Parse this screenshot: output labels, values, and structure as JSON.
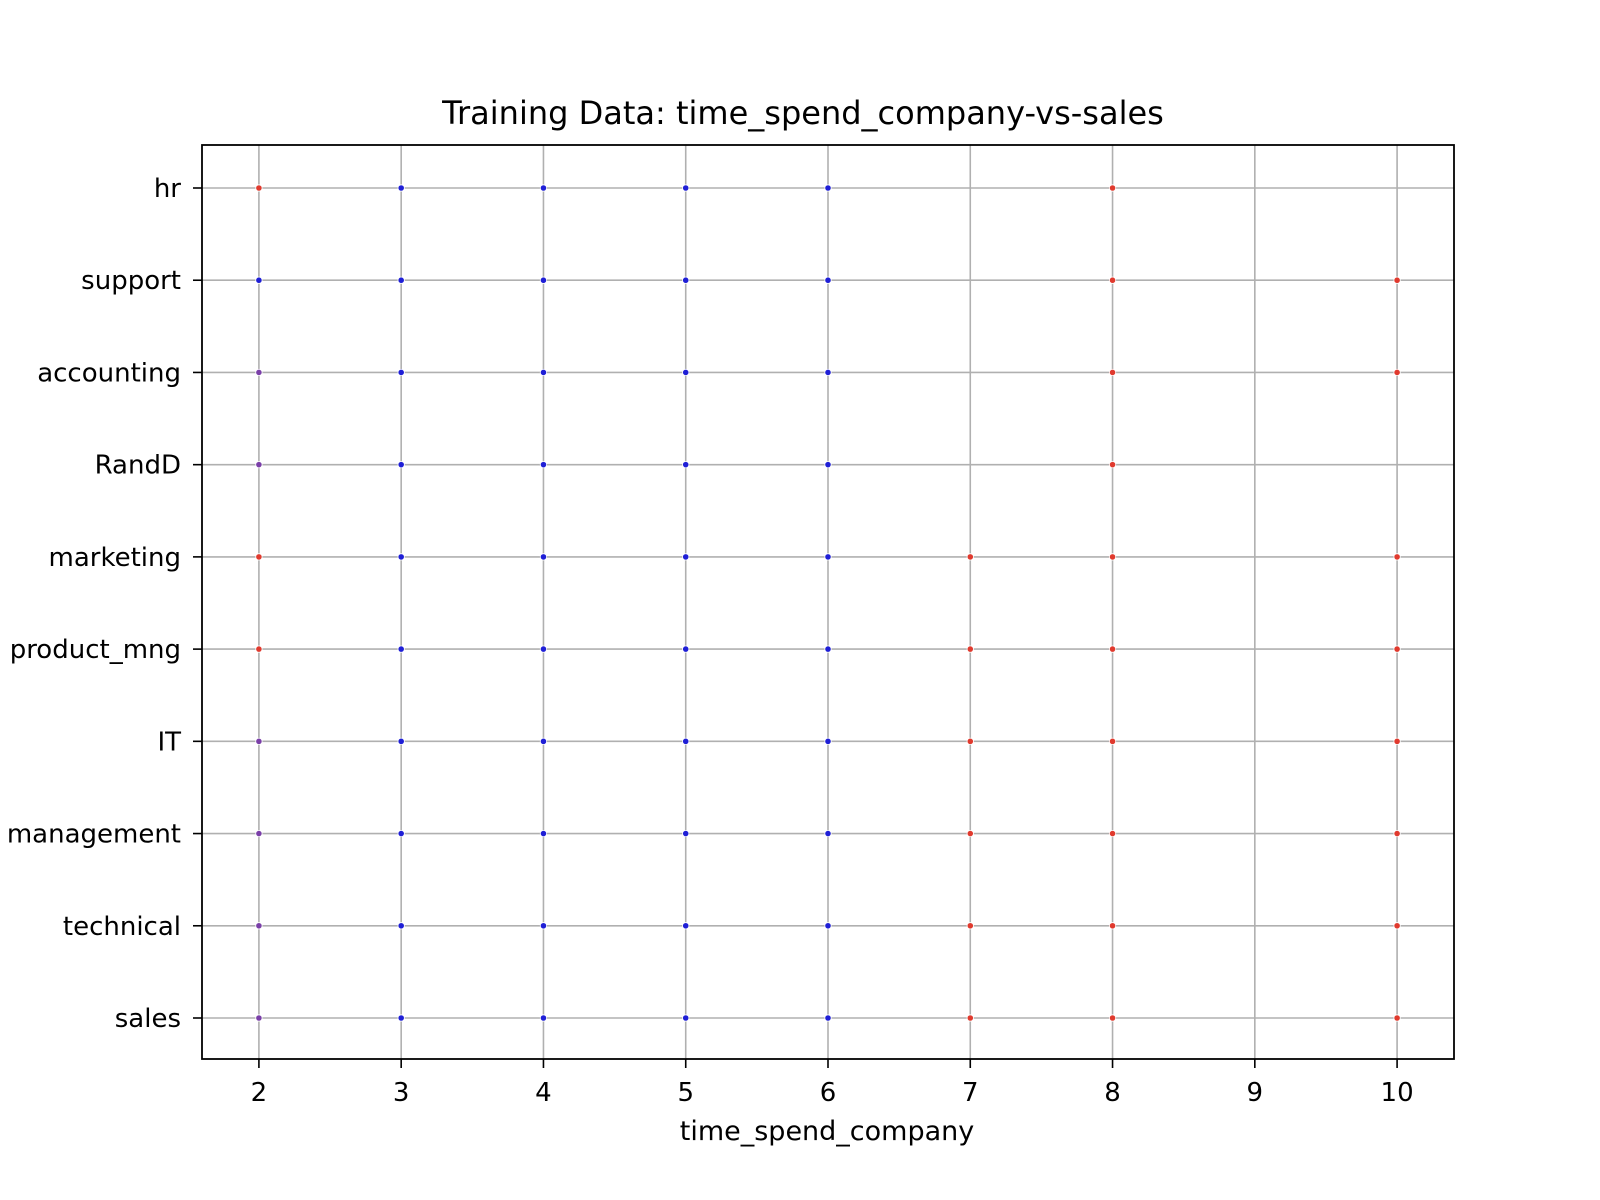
{
  "chart_data": {
    "type": "scatter",
    "title": "Training Data: time_spend_company-vs-sales",
    "xlabel": "time_spend_company",
    "ylabel": "",
    "xlim": [
      1.6,
      10.4
    ],
    "x_ticks": [
      2,
      3,
      4,
      5,
      6,
      7,
      8,
      9,
      10
    ],
    "y_categories": [
      "sales",
      "technical",
      "management",
      "IT",
      "product_mng",
      "marketing",
      "RandD",
      "accounting",
      "support",
      "hr"
    ],
    "grid": true,
    "colors": {
      "blue": "#1f1fd6",
      "red": "#e03a2e",
      "purple": "#7a3fa8"
    },
    "points": [
      {
        "x": 2,
        "y": "hr",
        "color": "red"
      },
      {
        "x": 3,
        "y": "hr",
        "color": "blue"
      },
      {
        "x": 4,
        "y": "hr",
        "color": "blue"
      },
      {
        "x": 5,
        "y": "hr",
        "color": "blue"
      },
      {
        "x": 6,
        "y": "hr",
        "color": "blue"
      },
      {
        "x": 8,
        "y": "hr",
        "color": "red"
      },
      {
        "x": 2,
        "y": "support",
        "color": "blue"
      },
      {
        "x": 3,
        "y": "support",
        "color": "blue"
      },
      {
        "x": 4,
        "y": "support",
        "color": "blue"
      },
      {
        "x": 5,
        "y": "support",
        "color": "blue"
      },
      {
        "x": 6,
        "y": "support",
        "color": "blue"
      },
      {
        "x": 8,
        "y": "support",
        "color": "red"
      },
      {
        "x": 10,
        "y": "support",
        "color": "red"
      },
      {
        "x": 2,
        "y": "accounting",
        "color": "purple"
      },
      {
        "x": 3,
        "y": "accounting",
        "color": "blue"
      },
      {
        "x": 4,
        "y": "accounting",
        "color": "blue"
      },
      {
        "x": 5,
        "y": "accounting",
        "color": "blue"
      },
      {
        "x": 6,
        "y": "accounting",
        "color": "blue"
      },
      {
        "x": 8,
        "y": "accounting",
        "color": "red"
      },
      {
        "x": 10,
        "y": "accounting",
        "color": "red"
      },
      {
        "x": 2,
        "y": "RandD",
        "color": "purple"
      },
      {
        "x": 3,
        "y": "RandD",
        "color": "blue"
      },
      {
        "x": 4,
        "y": "RandD",
        "color": "blue"
      },
      {
        "x": 5,
        "y": "RandD",
        "color": "blue"
      },
      {
        "x": 6,
        "y": "RandD",
        "color": "blue"
      },
      {
        "x": 8,
        "y": "RandD",
        "color": "red"
      },
      {
        "x": 2,
        "y": "marketing",
        "color": "red"
      },
      {
        "x": 3,
        "y": "marketing",
        "color": "blue"
      },
      {
        "x": 4,
        "y": "marketing",
        "color": "blue"
      },
      {
        "x": 5,
        "y": "marketing",
        "color": "blue"
      },
      {
        "x": 6,
        "y": "marketing",
        "color": "blue"
      },
      {
        "x": 7,
        "y": "marketing",
        "color": "red"
      },
      {
        "x": 8,
        "y": "marketing",
        "color": "red"
      },
      {
        "x": 10,
        "y": "marketing",
        "color": "red"
      },
      {
        "x": 2,
        "y": "product_mng",
        "color": "red"
      },
      {
        "x": 3,
        "y": "product_mng",
        "color": "blue"
      },
      {
        "x": 4,
        "y": "product_mng",
        "color": "blue"
      },
      {
        "x": 5,
        "y": "product_mng",
        "color": "blue"
      },
      {
        "x": 6,
        "y": "product_mng",
        "color": "blue"
      },
      {
        "x": 7,
        "y": "product_mng",
        "color": "red"
      },
      {
        "x": 8,
        "y": "product_mng",
        "color": "red"
      },
      {
        "x": 10,
        "y": "product_mng",
        "color": "red"
      },
      {
        "x": 2,
        "y": "IT",
        "color": "purple"
      },
      {
        "x": 3,
        "y": "IT",
        "color": "blue"
      },
      {
        "x": 4,
        "y": "IT",
        "color": "blue"
      },
      {
        "x": 5,
        "y": "IT",
        "color": "blue"
      },
      {
        "x": 6,
        "y": "IT",
        "color": "blue"
      },
      {
        "x": 7,
        "y": "IT",
        "color": "red"
      },
      {
        "x": 8,
        "y": "IT",
        "color": "red"
      },
      {
        "x": 10,
        "y": "IT",
        "color": "red"
      },
      {
        "x": 2,
        "y": "management",
        "color": "purple"
      },
      {
        "x": 3,
        "y": "management",
        "color": "blue"
      },
      {
        "x": 4,
        "y": "management",
        "color": "blue"
      },
      {
        "x": 5,
        "y": "management",
        "color": "blue"
      },
      {
        "x": 6,
        "y": "management",
        "color": "blue"
      },
      {
        "x": 7,
        "y": "management",
        "color": "red"
      },
      {
        "x": 8,
        "y": "management",
        "color": "red"
      },
      {
        "x": 10,
        "y": "management",
        "color": "red"
      },
      {
        "x": 2,
        "y": "technical",
        "color": "purple"
      },
      {
        "x": 3,
        "y": "technical",
        "color": "blue"
      },
      {
        "x": 4,
        "y": "technical",
        "color": "blue"
      },
      {
        "x": 5,
        "y": "technical",
        "color": "blue"
      },
      {
        "x": 6,
        "y": "technical",
        "color": "blue"
      },
      {
        "x": 7,
        "y": "technical",
        "color": "red"
      },
      {
        "x": 8,
        "y": "technical",
        "color": "red"
      },
      {
        "x": 10,
        "y": "technical",
        "color": "red"
      },
      {
        "x": 2,
        "y": "sales",
        "color": "purple"
      },
      {
        "x": 3,
        "y": "sales",
        "color": "blue"
      },
      {
        "x": 4,
        "y": "sales",
        "color": "blue"
      },
      {
        "x": 5,
        "y": "sales",
        "color": "blue"
      },
      {
        "x": 6,
        "y": "sales",
        "color": "blue"
      },
      {
        "x": 7,
        "y": "sales",
        "color": "red"
      },
      {
        "x": 8,
        "y": "sales",
        "color": "red"
      },
      {
        "x": 10,
        "y": "sales",
        "color": "red"
      }
    ]
  }
}
